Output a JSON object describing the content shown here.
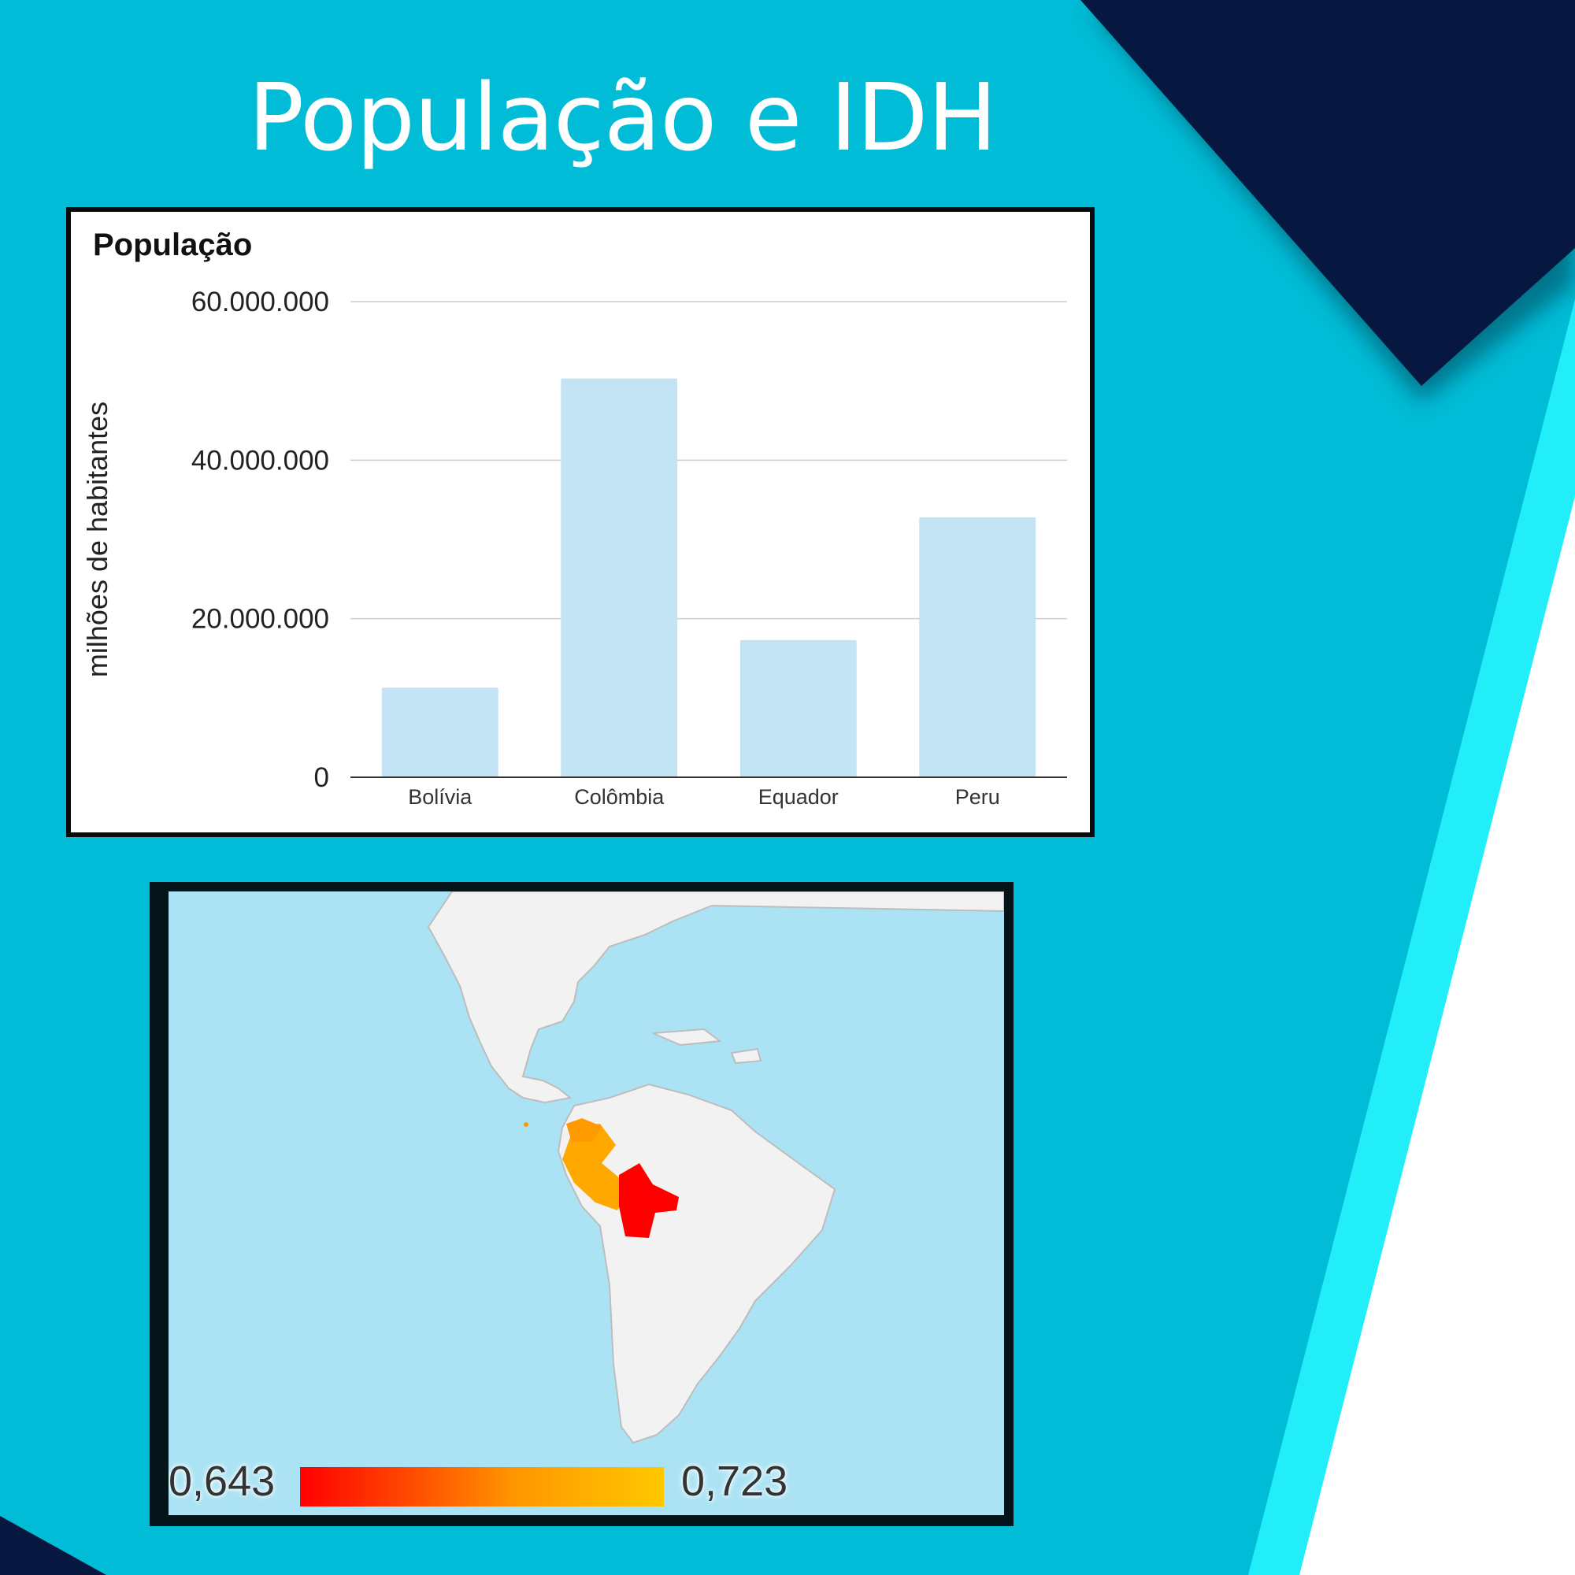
{
  "slide": {
    "title": "População e IDH"
  },
  "colors": {
    "background": "#00bcd6",
    "dark_navy": "#061840",
    "light_cyan_stripe": "#22eefa",
    "bar_fill": "#c2e4f4",
    "map_water": "#abe3f4",
    "map_land": "#f2f2f2",
    "idh_low": "#ff0000",
    "idh_high": "#ffc800"
  },
  "chart_data": [
    {
      "type": "bar",
      "title": "População",
      "xlabel": "",
      "ylabel": "milhões de habitantes",
      "categories": [
        "Bolívia",
        "Colômbia",
        "Equador",
        "Peru"
      ],
      "values": [
        11300000,
        50300000,
        17300000,
        32800000
      ],
      "ylim": [
        0,
        60000000
      ],
      "yticks": [
        0,
        20000000,
        40000000,
        60000000
      ],
      "ytick_labels": [
        "0",
        "20.000.000",
        "40.000.000",
        "60.000.000"
      ],
      "grid": true,
      "legend": "none"
    },
    {
      "type": "choropleth",
      "title": "",
      "metric": "IDH",
      "region": "América do Sul",
      "legend_min": "0,643",
      "legend_max": "0,723",
      "range": [
        0.643,
        0.723
      ],
      "legend_position": "bottom",
      "countries": [
        {
          "country": "Bolívia",
          "color": "#ff0000"
        },
        {
          "country": "Peru",
          "color": "#ffa800"
        },
        {
          "country": "Equador",
          "color": "#ff9a00"
        }
      ]
    }
  ]
}
